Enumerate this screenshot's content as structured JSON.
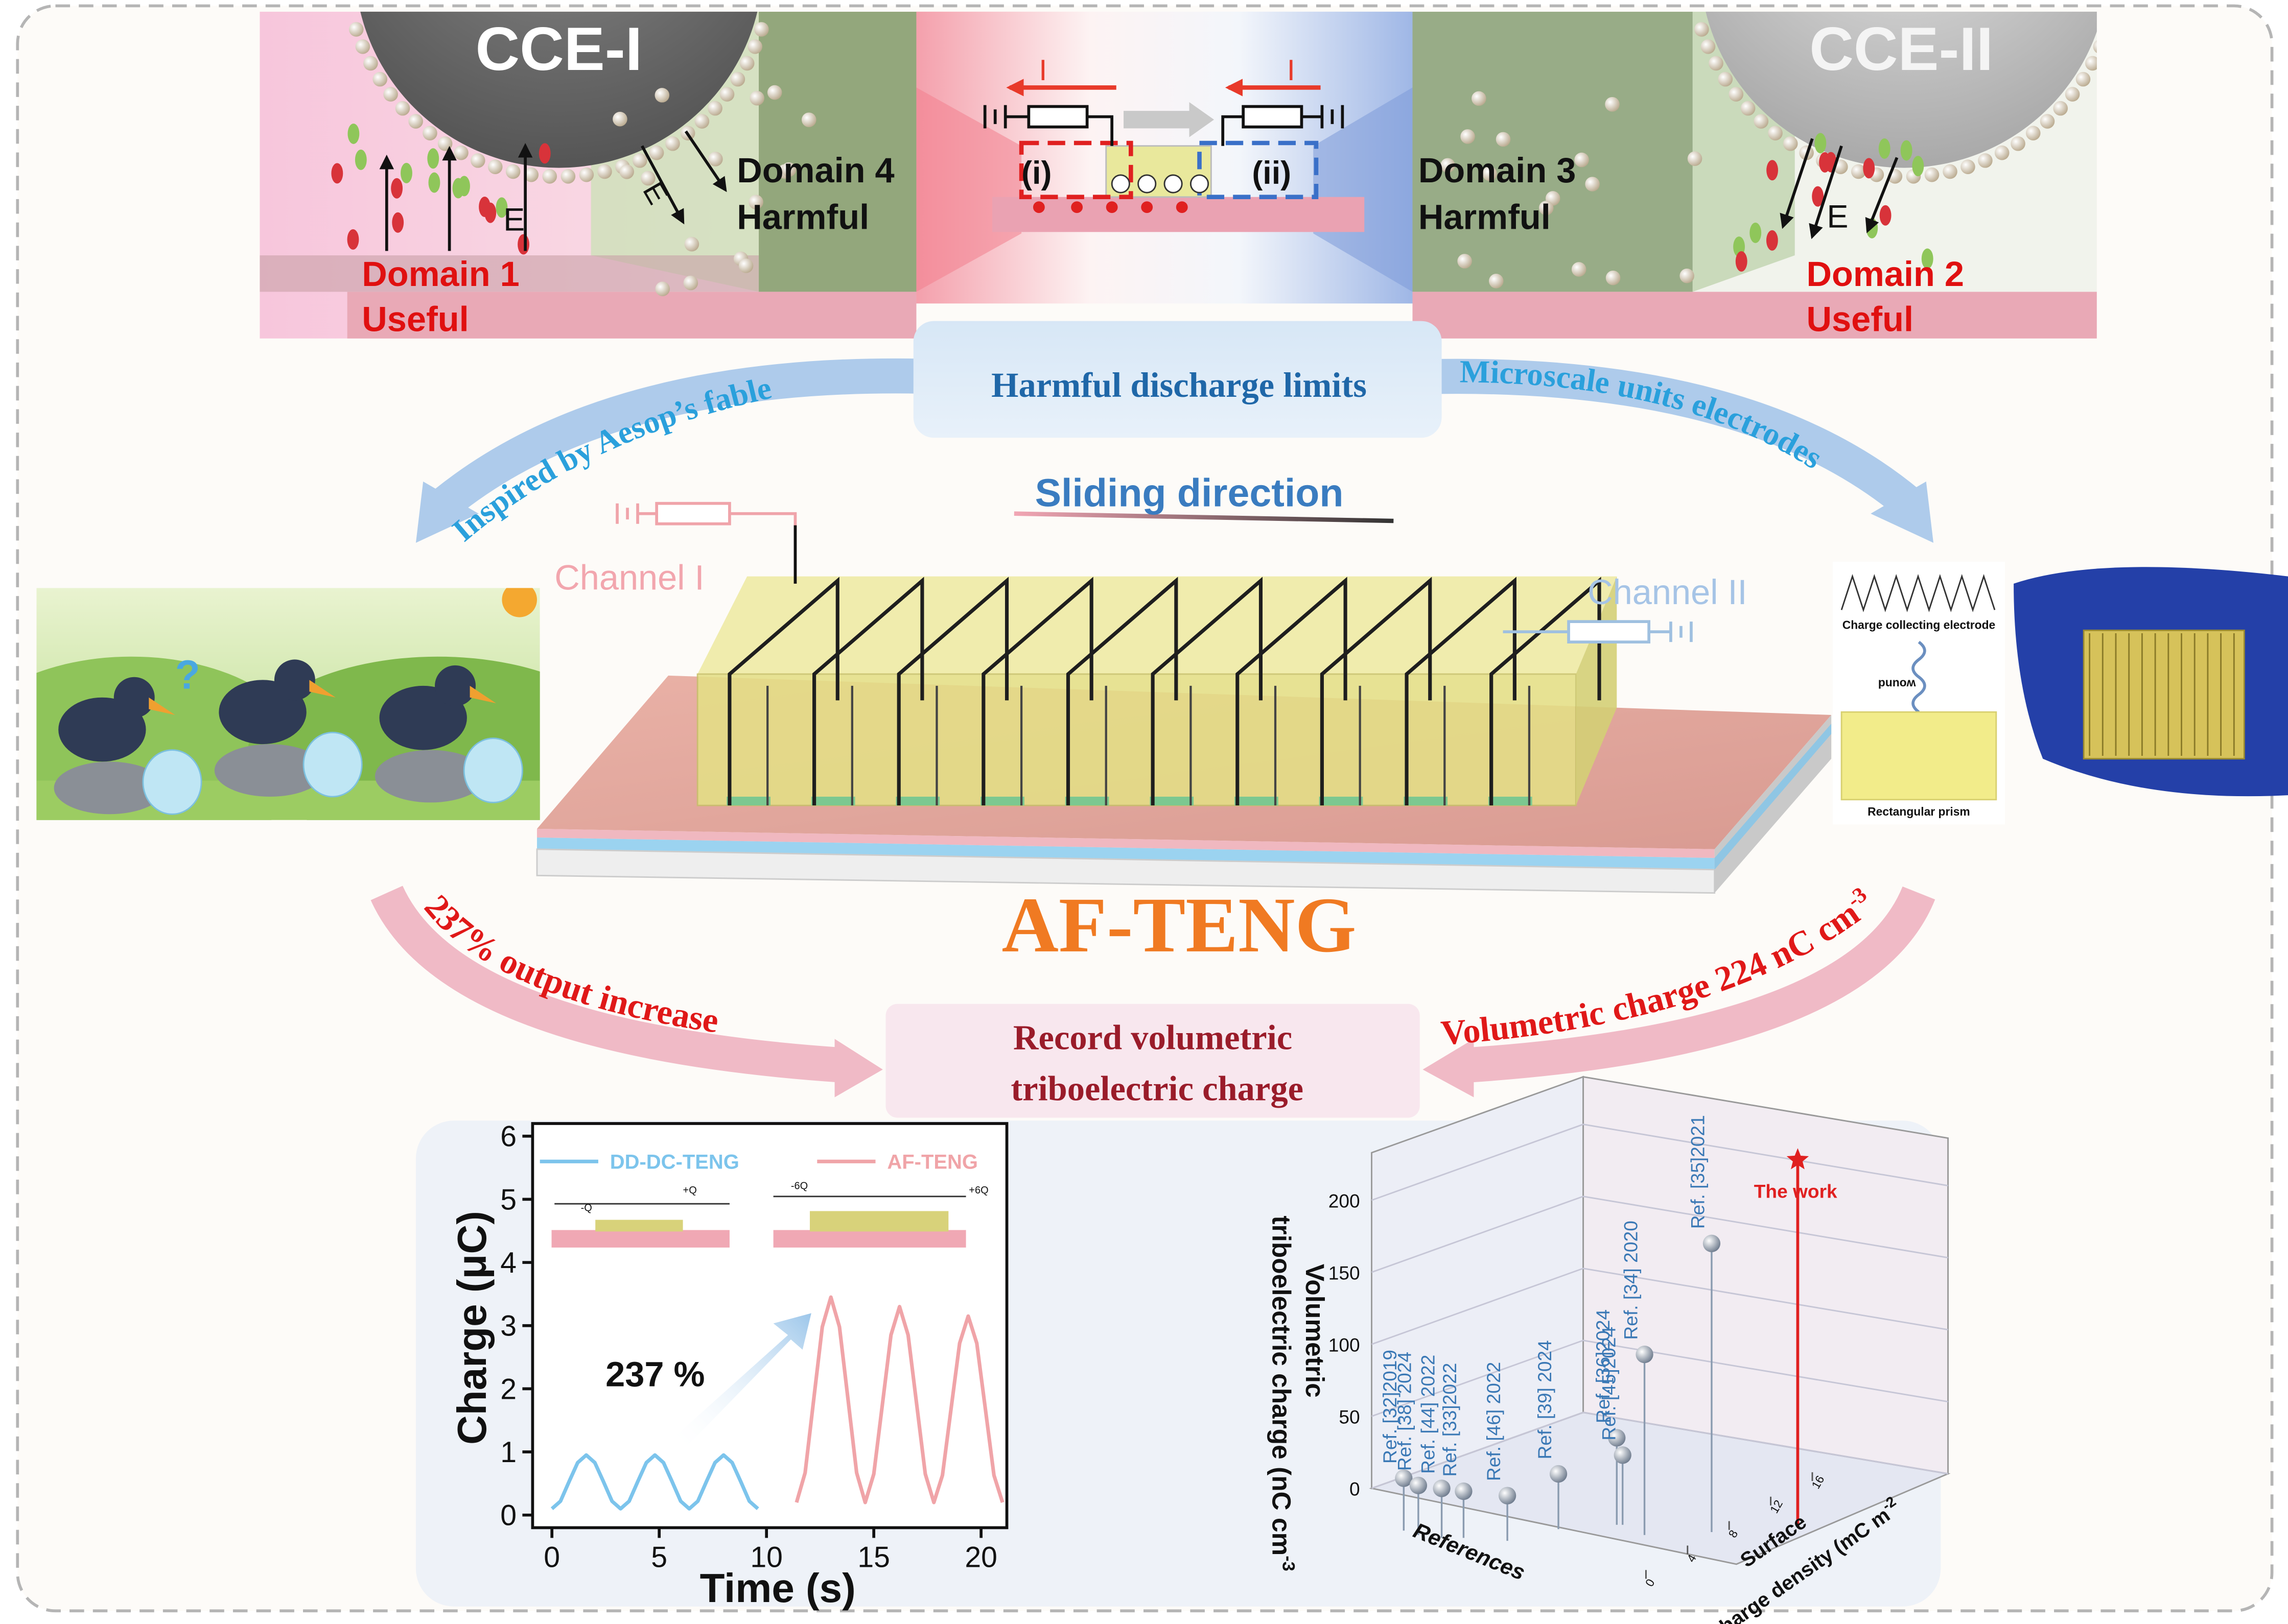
{
  "top_panel": {
    "cce_left": {
      "title": "CCE-I",
      "field_labels": [
        "E",
        "E"
      ],
      "domain_useful": [
        "Domain 1",
        "Useful"
      ],
      "domain_harmful": [
        "Domain 4",
        "Harmful"
      ]
    },
    "center": {
      "currents": [
        "I",
        "I"
      ],
      "regions": [
        "(i)",
        "(ii)"
      ]
    },
    "cce_right": {
      "title": "CCE-II",
      "field_label": "E",
      "domain_useful": [
        "Domain 2",
        "Useful"
      ],
      "domain_harmful": [
        "Domain 3",
        "Harmful"
      ]
    }
  },
  "limits_box": {
    "text": "Harmful discharge limits"
  },
  "arrow_labels": {
    "inspired": "Inspired by Aesop’s fable",
    "microscale": "Microscale units electrodes",
    "output": "237% output increase",
    "volumetric": {
      "text": "Volumetric charge 224 nC cm",
      "superscript": "-3"
    }
  },
  "crow_scene": {
    "question": "?"
  },
  "device": {
    "sliding": "Sliding direction",
    "channel_1": "Channel I",
    "channel_2": "Channel II",
    "name": "AF-TENG"
  },
  "electrode_inset": {
    "top": "Charge collecting electrode",
    "middle": "wound",
    "bottom": "Rectangular prism"
  },
  "record_box": {
    "lines": [
      "Record volumetric",
      "triboelectric charge"
    ]
  },
  "charge_plot": {
    "type": "line",
    "xlabel": "Time (s)",
    "ylabel": "Charge (μC)",
    "xlim": [
      -0.9,
      21.2
    ],
    "ylim": [
      -0.2,
      6.2
    ],
    "xticks": [
      0,
      5,
      10,
      15,
      20
    ],
    "yticks": [
      0,
      1,
      2,
      3,
      4,
      5,
      6
    ],
    "annotation": "237 %",
    "insets": {
      "dd": [
        "-Q",
        "+Q"
      ],
      "af": [
        "-6Q",
        "+6Q"
      ]
    },
    "series": [
      {
        "name": "DD-DC-TENG",
        "color": "#7cc4ec",
        "x": [
          0,
          0.4,
          0.8,
          1.2,
          1.6,
          2,
          2.4,
          2.8,
          3.2,
          3.6,
          4,
          4.4,
          4.8,
          5.2,
          5.6,
          6,
          6.4,
          6.8,
          7.2,
          7.6,
          8,
          8.4,
          8.8,
          9.2,
          9.6
        ],
        "values": [
          0.1,
          0.22,
          0.53,
          0.83,
          0.95,
          0.83,
          0.53,
          0.22,
          0.1,
          0.22,
          0.53,
          0.83,
          0.95,
          0.83,
          0.53,
          0.22,
          0.1,
          0.22,
          0.53,
          0.83,
          0.95,
          0.83,
          0.53,
          0.22,
          0.1
        ]
      },
      {
        "name": "AF-TENG",
        "color": "#f0a4a8",
        "x": [
          11.4,
          11.8,
          12.2,
          12.6,
          13,
          13.4,
          13.8,
          14.2,
          14.6,
          15,
          15.4,
          15.8,
          16.2,
          16.6,
          17,
          17.4,
          17.8,
          18.2,
          18.6,
          19,
          19.4,
          19.8,
          20.2,
          20.6,
          21
        ],
        "values": [
          0.2,
          0.67,
          1.83,
          2.98,
          3.45,
          2.98,
          1.83,
          0.67,
          0.2,
          0.65,
          1.75,
          2.85,
          3.3,
          2.85,
          1.75,
          0.65,
          0.2,
          0.63,
          1.68,
          2.72,
          3.15,
          2.72,
          1.68,
          0.63,
          0.2
        ]
      }
    ]
  },
  "volumetric_plot": {
    "type": "scatter3d",
    "zlabel": [
      "Volumetric",
      "triboelectric charge (nC cm"
    ],
    "zlabel_superscript": "-3",
    "xlabel": "References",
    "ylabel": [
      "Surface",
      "charge density (mC m"
    ],
    "ylabel_superscript": "-2",
    "zlim": [
      0,
      233
    ],
    "zticks": [
      0,
      50,
      100,
      150,
      200
    ],
    "yticks": [
      0,
      4,
      8,
      12,
      16
    ],
    "point_color": "#8a9bb0",
    "label_color": "#3a78b5",
    "highlight_color": "#e02020",
    "points": [
      {
        "label": "Ref. [32]2019",
        "value": 6
      },
      {
        "label": "Ref. [38] 2024",
        "value": 4
      },
      {
        "label": "Ref. [44] 2022",
        "value": 4
      },
      {
        "label": "Ref. [33]2022",
        "value": 2
      },
      {
        "label": "Ref. [46] 2022",
        "value": 1
      },
      {
        "label": "Ref. [39] 2024",
        "value": 8
      },
      {
        "label": "Ref. [36]2024",
        "value": 30
      },
      {
        "label": "Ref. [45]2024",
        "value": 18
      },
      {
        "label": "Ref. [34] 2020",
        "value": 95
      },
      {
        "label": "Ref. [35]2021",
        "value": 170
      },
      {
        "label": "The work",
        "value": 224
      }
    ]
  }
}
